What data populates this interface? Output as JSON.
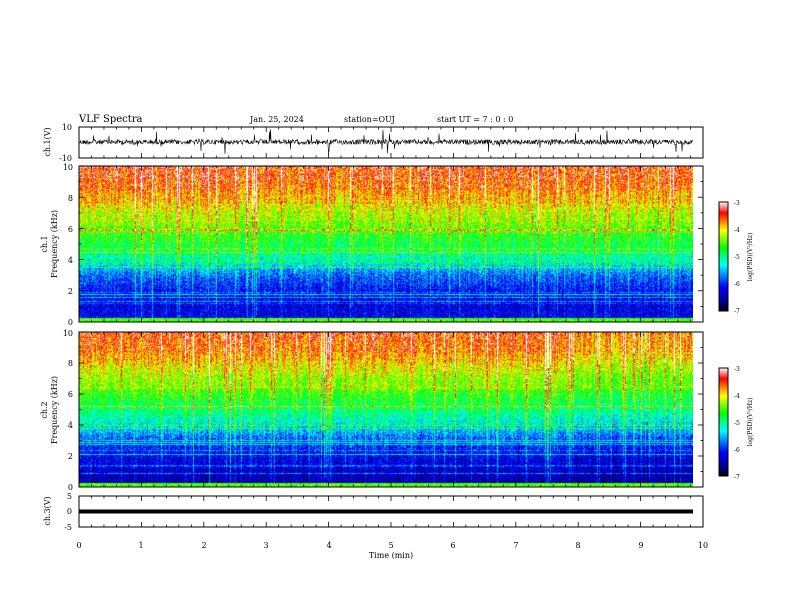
{
  "header": {
    "title": "VLF Spectra",
    "date": "Jan. 25, 2024",
    "station": "station=OUJ",
    "start_time": "start  UT =   7 : 0  : 0"
  },
  "chart_data": [
    {
      "type": "line",
      "panel": "ch1-waveform",
      "ylabel": "ch.1(V)",
      "ylim": [
        -10,
        10
      ],
      "ytick_labels": [
        "10",
        "-10"
      ],
      "xlim": [
        0,
        10
      ],
      "baseline": 0,
      "line_color": "#000000"
    },
    {
      "type": "heatmap",
      "panel": "ch1-spectrogram",
      "ylabel_channel": "ch.1",
      "ylabel": "Frequency  (kHz)",
      "ylim": [
        0,
        10
      ],
      "ytick_labels": [
        "0",
        "2",
        "4",
        "6",
        "8",
        "10"
      ],
      "xlim": [
        0,
        9.8
      ],
      "colorbar": {
        "label": "log(PSD)(V²/Hz)",
        "range": [
          -7,
          -3
        ],
        "tick_labels": [
          "-3",
          "-4",
          "-5",
          "-6",
          "-7"
        ],
        "colors": [
          "#000000",
          "#00008b",
          "#0000ff",
          "#00ffff",
          "#00ff00",
          "#ffff00",
          "#ff0000",
          "#ffffff"
        ]
      },
      "profile": [
        [
          0,
          0.2
        ],
        [
          1,
          0.18
        ],
        [
          2,
          0.22
        ],
        [
          3,
          0.3
        ],
        [
          4,
          0.45
        ],
        [
          5,
          0.55
        ],
        [
          6,
          0.62
        ],
        [
          7,
          0.7
        ],
        [
          8,
          0.78
        ],
        [
          9,
          0.85
        ],
        [
          10,
          0.88
        ]
      ]
    },
    {
      "type": "heatmap",
      "panel": "ch2-spectrogram",
      "ylabel_channel": "ch.2",
      "ylabel": "Frequency  (kHz)",
      "ylim": [
        0,
        10
      ],
      "ytick_labels": [
        "0",
        "2",
        "4",
        "6",
        "8",
        "10"
      ],
      "xlim": [
        0,
        9.8
      ],
      "colorbar": {
        "label": "log(PSD)(V²/Hz)",
        "range": [
          -7,
          -3
        ],
        "tick_labels": [
          "-3",
          "-4",
          "-5",
          "-6",
          "-7"
        ],
        "colors": [
          "#000000",
          "#00008b",
          "#0000ff",
          "#00ffff",
          "#00ff00",
          "#ffff00",
          "#ff0000",
          "#ffffff"
        ]
      },
      "profile": [
        [
          0,
          0.12
        ],
        [
          1,
          0.15
        ],
        [
          2,
          0.2
        ],
        [
          3,
          0.28
        ],
        [
          4,
          0.42
        ],
        [
          5,
          0.52
        ],
        [
          6,
          0.6
        ],
        [
          7,
          0.68
        ],
        [
          8,
          0.76
        ],
        [
          9,
          0.84
        ],
        [
          10,
          0.88
        ]
      ]
    },
    {
      "type": "line",
      "panel": "ch3-waveform",
      "ylabel": "ch.3(V)",
      "ylim": [
        -5,
        5
      ],
      "ytick_labels": [
        "5",
        "0",
        "-5"
      ],
      "xlim": [
        0,
        10
      ],
      "baseline": 0,
      "line_color": "#000000"
    }
  ],
  "xaxis": {
    "label": "Time  (min)",
    "range": [
      0,
      10
    ],
    "tick_labels": [
      "0",
      "1",
      "2",
      "3",
      "4",
      "5",
      "6",
      "7",
      "8",
      "9",
      "10"
    ]
  }
}
